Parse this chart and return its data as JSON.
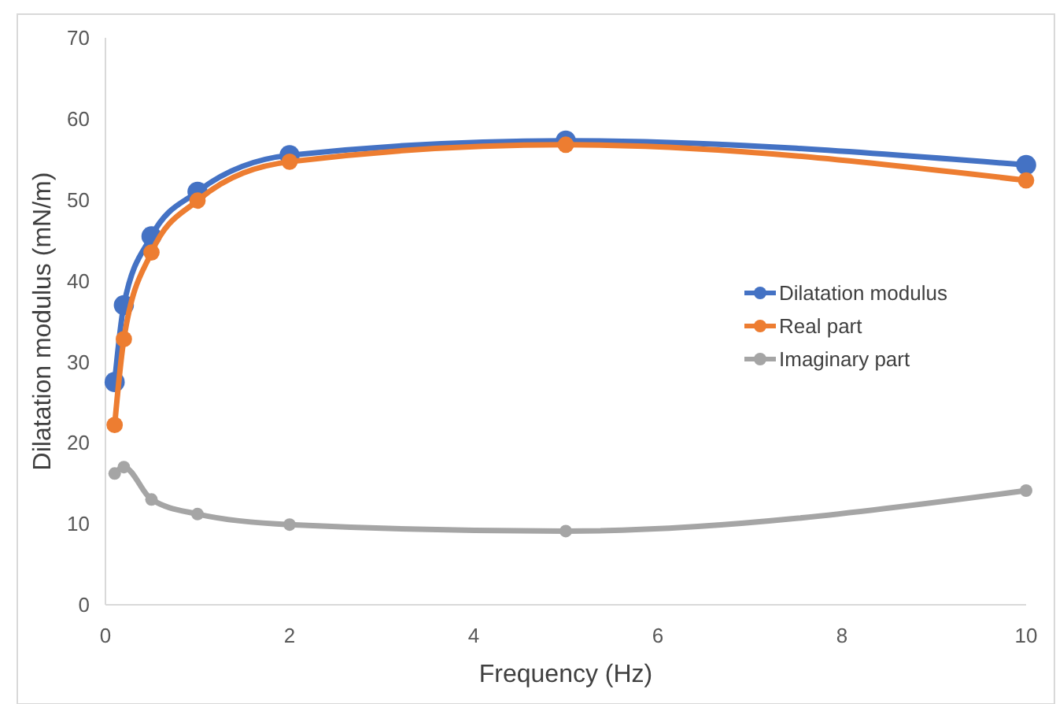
{
  "chart_data": {
    "type": "line",
    "xlabel": "Frequency (Hz)",
    "ylabel": "Dilatation modulus (mN/m)",
    "x": [
      0.1,
      0.2,
      0.5,
      1,
      2,
      5,
      10
    ],
    "series": [
      {
        "name": "Dilatation modulus",
        "color": "#4472c4",
        "values": [
          27.5,
          37,
          45.5,
          51,
          55.5,
          57.3,
          54.3
        ]
      },
      {
        "name": "Real part",
        "color": "#ed7d31",
        "values": [
          22.2,
          32.8,
          43.5,
          49.9,
          54.7,
          56.8,
          52.4
        ]
      },
      {
        "name": "Imaginary part",
        "color": "#a5a5a5",
        "values": [
          16.2,
          17,
          13,
          11.2,
          9.9,
          9.1,
          14.1
        ]
      }
    ],
    "xlim": [
      0,
      10
    ],
    "xticks": [
      0,
      2,
      4,
      6,
      8,
      10
    ],
    "ylim": [
      0,
      70
    ],
    "yticks": [
      0,
      10,
      20,
      30,
      40,
      50,
      60,
      70
    ],
    "grid": false,
    "legend": "right",
    "marker": "circle",
    "line_style": "solid"
  }
}
